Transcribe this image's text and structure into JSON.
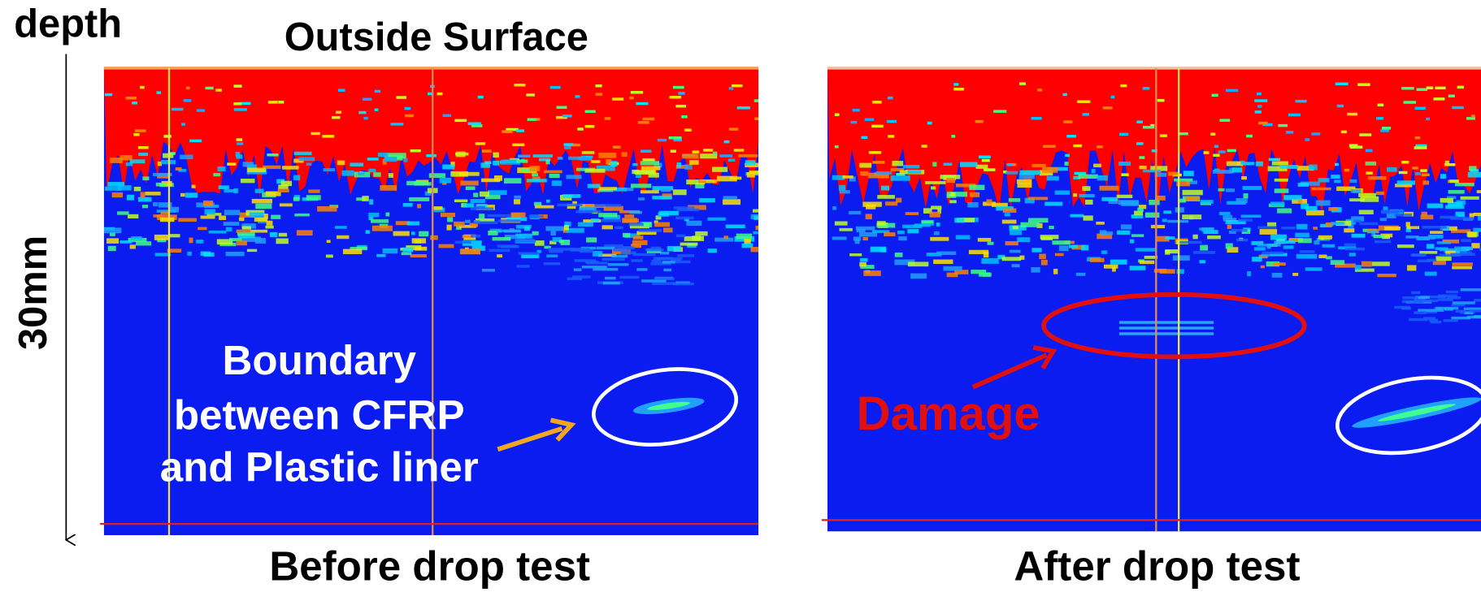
{
  "axis": {
    "label": "depth",
    "extent": "30mm"
  },
  "header": "Outside Surface",
  "panels": [
    {
      "caption": "Before drop test",
      "annotation": [
        "Boundary",
        "between CFRP",
        "and Plastic liner"
      ]
    },
    {
      "caption": "After drop test",
      "annotation": [
        "Damage"
      ]
    }
  ]
}
